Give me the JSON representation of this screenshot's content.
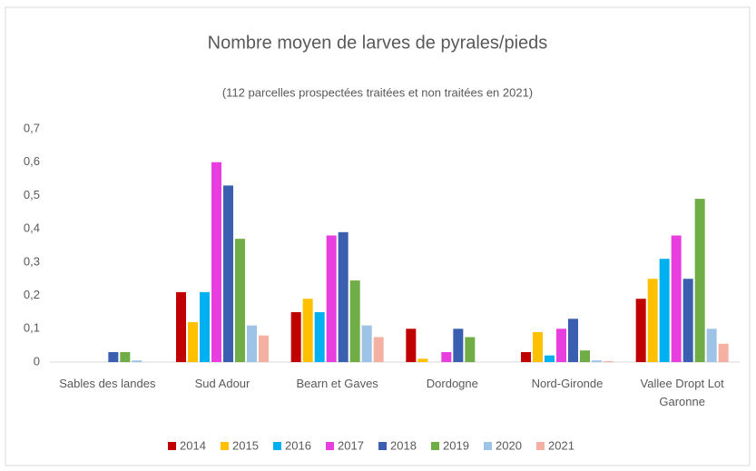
{
  "chart_data": {
    "type": "bar",
    "title": "Nombre moyen de larves de pyrales/pieds",
    "subtitle": "(112 parcelles prospectées traitées et non traitées en 2021)",
    "categories": [
      "Sables des landes",
      "Sud Adour",
      "Bearn et Gaves",
      "Dordogne",
      "Nord-Gironde",
      "Vallee Dropt Lot Garonne"
    ],
    "series": [
      {
        "name": "2014",
        "color": "#c00000",
        "values": [
          0,
          0.21,
          0.15,
          0.1,
          0.03,
          0.19
        ]
      },
      {
        "name": "2015",
        "color": "#ffc000",
        "values": [
          0,
          0.12,
          0.19,
          0.01,
          0.09,
          0.25
        ]
      },
      {
        "name": "2016",
        "color": "#00b0f0",
        "values": [
          0,
          0.21,
          0.15,
          0,
          0.02,
          0.31
        ]
      },
      {
        "name": "2017",
        "color": "#e83ee0",
        "values": [
          0,
          0.6,
          0.38,
          0.03,
          0.1,
          0.38
        ]
      },
      {
        "name": "2018",
        "color": "#3a5fb0",
        "values": [
          0.03,
          0.53,
          0.39,
          0.1,
          0.13,
          0.25
        ]
      },
      {
        "name": "2019",
        "color": "#70ad47",
        "values": [
          0.03,
          0.37,
          0.245,
          0.075,
          0.035,
          0.49
        ]
      },
      {
        "name": "2020",
        "color": "#9dc3e6",
        "values": [
          0.005,
          0.11,
          0.11,
          0,
          0.005,
          0.1
        ]
      },
      {
        "name": "2021",
        "color": "#f4b0a0",
        "values": [
          0,
          0.08,
          0.075,
          0,
          0.003,
          0.055
        ]
      }
    ],
    "ylim": [
      0,
      0.7
    ],
    "yticks": [
      0,
      {
        "value": 0.1,
        "label": "0,1"
      },
      {
        "value": 0.2,
        "label": "0,2"
      },
      {
        "value": 0.3,
        "label": "0,3"
      },
      {
        "value": 0.4,
        "label": "0,4"
      },
      {
        "value": 0.5,
        "label": "0,5"
      },
      {
        "value": 0.6,
        "label": "0,6"
      },
      {
        "value": 0.7,
        "label": "0,7"
      }
    ],
    "grid": false,
    "legend": "bottom"
  }
}
